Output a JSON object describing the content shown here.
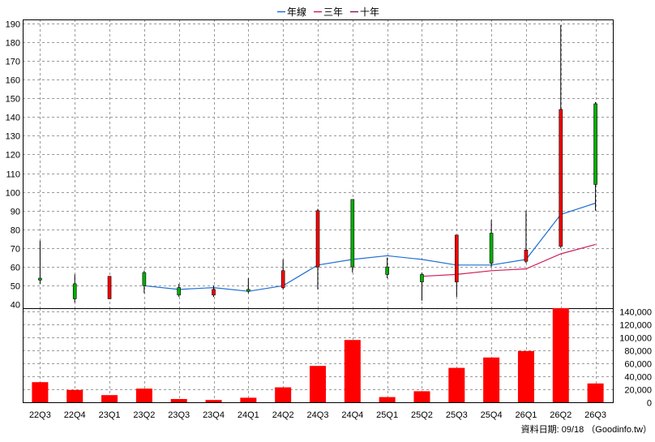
{
  "chart_data": {
    "type": "candlestick",
    "legend": [
      {
        "name": "年線",
        "color": "#1f6fd1"
      },
      {
        "name": "三年",
        "color": "#d11f5a"
      },
      {
        "name": "十年",
        "color": "#8b1a6a"
      }
    ],
    "categories": [
      "22Q3",
      "22Q4",
      "23Q1",
      "23Q2",
      "23Q3",
      "23Q4",
      "24Q1",
      "24Q2",
      "24Q3",
      "24Q4",
      "25Q1",
      "25Q2",
      "25Q3",
      "25Q4",
      "26Q1",
      "26Q2",
      "26Q3"
    ],
    "price_axis": {
      "ylim": [
        38,
        192
      ],
      "ticks": [
        40,
        50,
        60,
        70,
        80,
        90,
        100,
        110,
        120,
        130,
        140,
        150,
        160,
        170,
        180,
        190
      ]
    },
    "volume_axis": {
      "ylim": [
        0,
        145000
      ],
      "ticks": [
        0,
        20000,
        40000,
        60000,
        80000,
        100000,
        120000,
        140000
      ],
      "tick_labels": [
        "0",
        "20,000",
        "40,000",
        "60,000",
        "80,000",
        "100,000",
        "120,000",
        "140,000"
      ]
    },
    "candles": [
      {
        "open": 53,
        "high": 74,
        "low": 51,
        "close": 54
      },
      {
        "open": 43,
        "high": 56,
        "low": 41,
        "close": 51
      },
      {
        "open": 55,
        "high": 55,
        "low": 43,
        "close": 43
      },
      {
        "open": 50,
        "high": 58,
        "low": 46,
        "close": 57
      },
      {
        "open": 45,
        "high": 51,
        "low": 44,
        "close": 49
      },
      {
        "open": 48,
        "high": 50,
        "low": 44,
        "close": 45
      },
      {
        "open": 47,
        "high": 54,
        "low": 46,
        "close": 48
      },
      {
        "open": 58,
        "high": 64,
        "low": 48,
        "close": 49
      },
      {
        "open": 90,
        "high": 91,
        "low": 48,
        "close": 60
      },
      {
        "open": 60,
        "high": 96,
        "low": 57,
        "close": 96
      },
      {
        "open": 56,
        "high": 65,
        "low": 54,
        "close": 60
      },
      {
        "open": 52,
        "high": 57,
        "low": 42,
        "close": 56
      },
      {
        "open": 77,
        "high": 77,
        "low": 44,
        "close": 52
      },
      {
        "open": 62,
        "high": 85,
        "low": 60,
        "close": 78
      },
      {
        "open": 69,
        "high": 90,
        "low": 62,
        "close": 63
      },
      {
        "open": 144,
        "high": 189,
        "low": 70,
        "close": 71
      },
      {
        "open": 104,
        "high": 148,
        "low": 90,
        "close": 147
      }
    ],
    "ma_series": [
      {
        "name": "年線",
        "color": "#1f6fd1",
        "values": [
          null,
          null,
          null,
          50,
          48,
          49,
          47,
          50,
          61,
          64,
          66,
          64,
          61,
          61,
          64,
          88,
          94
        ]
      },
      {
        "name": "三年",
        "color": "#d11f5a",
        "values": [
          null,
          null,
          null,
          null,
          null,
          null,
          null,
          null,
          null,
          null,
          null,
          55,
          56,
          58,
          59,
          67,
          72
        ]
      }
    ],
    "volume": [
      31000,
      19000,
      11000,
      21000,
      5000,
      3500,
      7000,
      23000,
      56000,
      96000,
      8000,
      17000,
      53000,
      69000,
      79000,
      145000,
      29000
    ],
    "colors": {
      "up": "#00b000",
      "down": "#ff0000",
      "volume": "#ff0000",
      "grid": "#999999"
    }
  },
  "footer": {
    "note": "資料日期: 09/18 （Goodinfo.tw）"
  }
}
